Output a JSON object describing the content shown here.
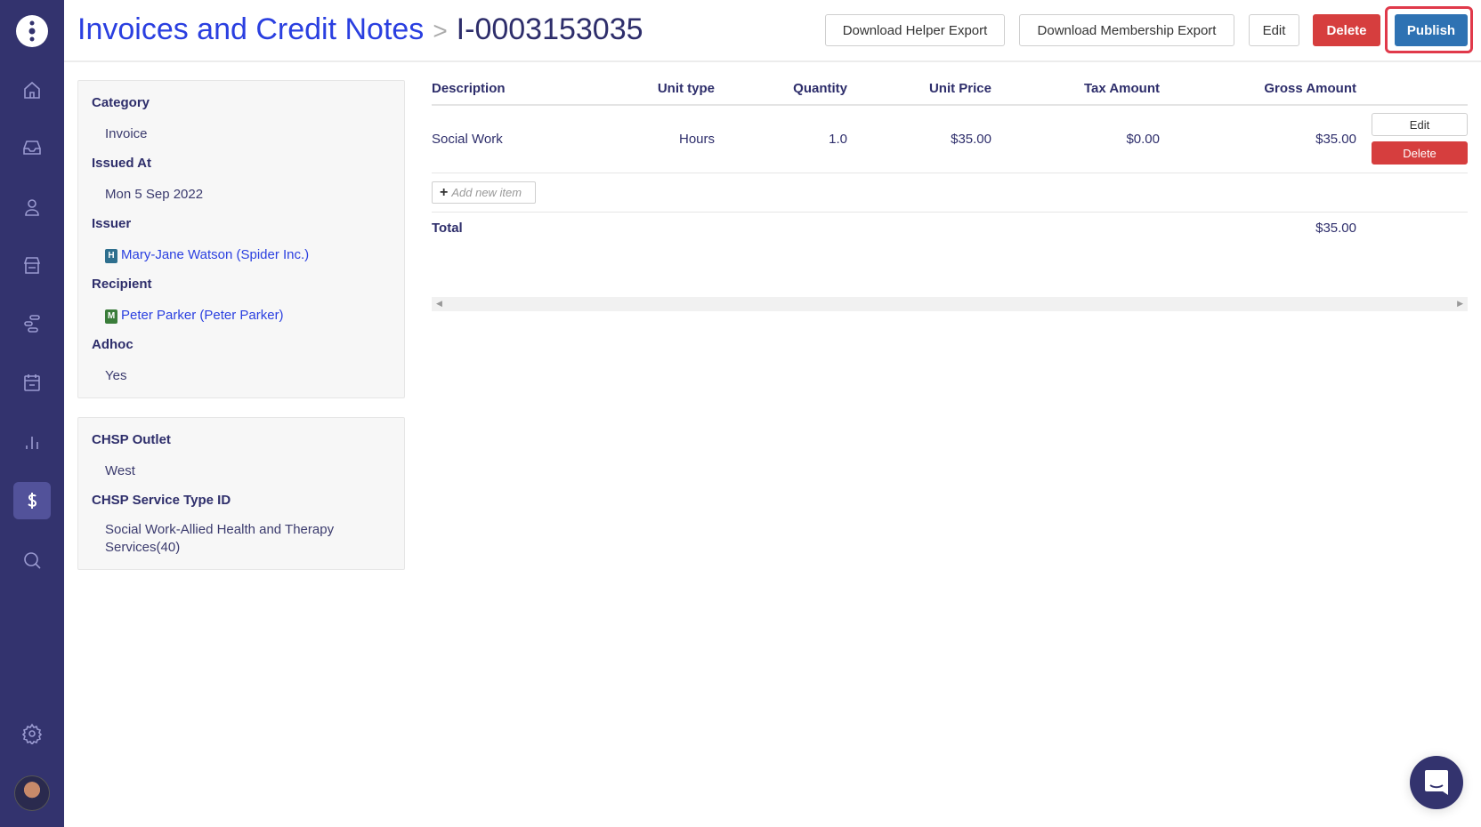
{
  "header": {
    "breadcrumb": "Invoices and Credit Notes",
    "separator": ">",
    "invoice_id": "I-0003153035",
    "buttons": {
      "helper_export": "Download Helper Export",
      "membership_export": "Download Membership Export",
      "edit": "Edit",
      "delete": "Delete",
      "publish": "Publish"
    }
  },
  "colors": {
    "sidebar": "#33336e",
    "link": "#2a3fe0",
    "delete": "#d63e3e",
    "publish": "#2e72b3",
    "highlight": "#e0394a"
  },
  "sidebar": {
    "items": [
      {
        "icon": "home-icon"
      },
      {
        "icon": "inbox-icon"
      },
      {
        "icon": "user-icon"
      },
      {
        "icon": "store-icon"
      },
      {
        "icon": "workflow-icon"
      },
      {
        "icon": "calendar-icon"
      },
      {
        "icon": "chart-icon"
      },
      {
        "icon": "dollar-icon",
        "active": true
      },
      {
        "icon": "search-icon"
      },
      {
        "icon": "gear-icon"
      }
    ]
  },
  "details": {
    "category_label": "Category",
    "category": "Invoice",
    "issued_label": "Issued At",
    "issued": "Mon 5 Sep 2022",
    "issuer_label": "Issuer",
    "issuer_badge": "H",
    "issuer": "Mary-Jane Watson (Spider Inc.)",
    "recipient_label": "Recipient",
    "recipient_badge": "M",
    "recipient": "Peter Parker (Peter Parker)",
    "adhoc_label": "Adhoc",
    "adhoc": "Yes"
  },
  "chsp": {
    "outlet_label": "CHSP Outlet",
    "outlet": "West",
    "service_label": "CHSP Service Type ID",
    "service": "Social Work-Allied Health and Therapy Services(40)"
  },
  "table": {
    "columns": [
      "Description",
      "Unit type",
      "Quantity",
      "Unit Price",
      "Tax Amount",
      "Gross Amount"
    ],
    "rows": [
      {
        "description": "Social Work",
        "unit_type": "Hours",
        "quantity": "1.0",
        "unit_price": "$35.00",
        "tax": "$0.00",
        "gross": "$35.00",
        "edit": "Edit",
        "delete": "Delete"
      }
    ],
    "add_item": "Add new item",
    "total_label": "Total",
    "total": "$35.00"
  }
}
